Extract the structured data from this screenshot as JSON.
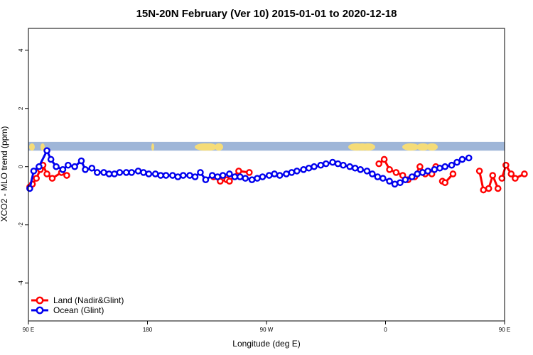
{
  "chart_data": {
    "type": "line",
    "title": "15N-20N February (Ver 10)   2015-01-01 to 2020-12-18",
    "xlabel": "Longitude (deg E)",
    "ylabel": "XCO2 - MLO trend (ppm)",
    "xlim": [
      90,
      450
    ],
    "ylim": [
      -5.3,
      4.75
    ],
    "x_ticks": [
      {
        "value": 90,
        "label": "90 E"
      },
      {
        "value": 180,
        "label": "180"
      },
      {
        "value": 270,
        "label": "90 W"
      },
      {
        "value": 360,
        "label": "0"
      },
      {
        "value": 450,
        "label": "90 E"
      },
      {
        "value": 540,
        "label": "180"
      }
    ],
    "y_ticks": [
      {
        "value": -4,
        "label": "-4"
      },
      {
        "value": -2,
        "label": "-2"
      },
      {
        "value": 0,
        "label": "0"
      },
      {
        "value": 2,
        "label": "2"
      },
      {
        "value": 4,
        "label": "4"
      }
    ],
    "grid": false,
    "legend_position": "bottom-left",
    "map_strip": {
      "y_low": 0.55,
      "y_high": 0.85,
      "ocean_color": "#9fb6d8",
      "land_color": "#f5dc78"
    },
    "series": [
      {
        "name": "Land (Nadir&Glint)",
        "color": "#ff0000",
        "segments": [
          [
            [
              91,
              -0.7
            ],
            [
              93,
              -0.6
            ],
            [
              96,
              -0.4
            ],
            [
              99,
              -0.1
            ],
            [
              101,
              0.05
            ],
            [
              104,
              -0.25
            ],
            [
              108,
              -0.4
            ],
            [
              115,
              -0.2
            ],
            [
              119,
              -0.3
            ]
          ],
          [
            [
              230,
              -0.35
            ],
            [
              235,
              -0.5
            ],
            [
              240,
              -0.45
            ],
            [
              242,
              -0.5
            ],
            [
              249,
              -0.15
            ],
            [
              257,
              -0.2
            ]
          ],
          [
            [
              355,
              0.1
            ],
            [
              359,
              0.25
            ],
            [
              363,
              -0.1
            ],
            [
              368,
              -0.2
            ],
            [
              373,
              -0.3
            ],
            [
              377,
              -0.45
            ],
            [
              382,
              -0.35
            ],
            [
              386,
              0.0
            ],
            [
              390,
              -0.25
            ],
            [
              395,
              -0.25
            ],
            [
              398,
              0.0
            ]
          ],
          [
            [
              403,
              -0.5
            ],
            [
              405,
              -0.55
            ],
            [
              411,
              -0.25
            ]
          ],
          [
            [
              431,
              -0.15
            ],
            [
              434,
              -0.8
            ],
            [
              438,
              -0.75
            ],
            [
              441,
              -0.3
            ],
            [
              445,
              -0.75
            ]
          ],
          [
            [
              448,
              -0.4
            ],
            [
              451,
              0.05
            ],
            [
              455,
              -0.25
            ],
            [
              458,
              -0.4
            ],
            [
              465,
              -0.25
            ]
          ]
        ]
      },
      {
        "name": "Ocean (Glint)",
        "color": "#0000ee",
        "segments": [
          [
            [
              91,
              -0.75
            ],
            [
              94,
              -0.15
            ],
            [
              98,
              0.0
            ],
            [
              104,
              0.55
            ],
            [
              107,
              0.25
            ],
            [
              111,
              0.0
            ],
            [
              116,
              -0.1
            ],
            [
              120,
              0.05
            ],
            [
              125,
              0.0
            ],
            [
              130,
              0.2
            ],
            [
              133,
              -0.1
            ],
            [
              138,
              -0.05
            ],
            [
              142,
              -0.2
            ],
            [
              147,
              -0.2
            ],
            [
              151,
              -0.25
            ],
            [
              155,
              -0.25
            ],
            [
              159,
              -0.2
            ],
            [
              164,
              -0.2
            ],
            [
              168,
              -0.2
            ],
            [
              173,
              -0.15
            ],
            [
              177,
              -0.2
            ],
            [
              181,
              -0.25
            ],
            [
              186,
              -0.25
            ],
            [
              190,
              -0.3
            ],
            [
              194,
              -0.3
            ],
            [
              199,
              -0.3
            ],
            [
              203,
              -0.35
            ],
            [
              207,
              -0.3
            ],
            [
              212,
              -0.3
            ],
            [
              216,
              -0.35
            ],
            [
              220,
              -0.2
            ],
            [
              224,
              -0.45
            ],
            [
              229,
              -0.3
            ],
            [
              233,
              -0.35
            ],
            [
              237,
              -0.3
            ],
            [
              242,
              -0.25
            ],
            [
              246,
              -0.35
            ],
            [
              250,
              -0.35
            ],
            [
              254,
              -0.4
            ],
            [
              259,
              -0.45
            ],
            [
              263,
              -0.4
            ],
            [
              267,
              -0.35
            ],
            [
              272,
              -0.3
            ],
            [
              276,
              -0.25
            ],
            [
              280,
              -0.3
            ],
            [
              285,
              -0.25
            ],
            [
              289,
              -0.2
            ],
            [
              293,
              -0.15
            ],
            [
              298,
              -0.1
            ],
            [
              302,
              -0.05
            ],
            [
              306,
              0.0
            ],
            [
              311,
              0.05
            ],
            [
              315,
              0.1
            ],
            [
              320,
              0.15
            ],
            [
              324,
              0.1
            ],
            [
              328,
              0.05
            ],
            [
              333,
              0.0
            ],
            [
              337,
              -0.05
            ],
            [
              341,
              -0.1
            ],
            [
              346,
              -0.15
            ],
            [
              350,
              -0.25
            ],
            [
              354,
              -0.35
            ],
            [
              358,
              -0.4
            ],
            [
              363,
              -0.5
            ],
            [
              367,
              -0.6
            ],
            [
              371,
              -0.55
            ],
            [
              375,
              -0.45
            ],
            [
              380,
              -0.35
            ],
            [
              384,
              -0.25
            ],
            [
              388,
              -0.2
            ],
            [
              392,
              -0.15
            ],
            [
              397,
              -0.1
            ],
            [
              401,
              -0.05
            ],
            [
              405,
              0.0
            ],
            [
              410,
              0.05
            ],
            [
              414,
              0.15
            ],
            [
              418,
              0.25
            ],
            [
              423,
              0.3
            ]
          ]
        ]
      }
    ]
  }
}
